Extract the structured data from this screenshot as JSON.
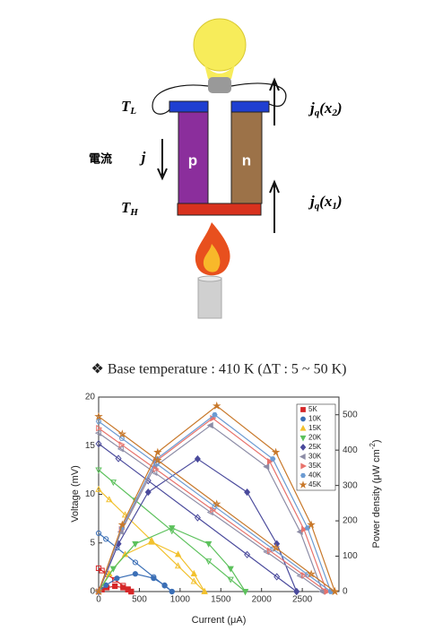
{
  "diagram": {
    "cold_side": [
      "T",
      "L"
    ],
    "hot_side": [
      "T",
      "H"
    ],
    "heat_flux_top": [
      "j",
      "q",
      "(x",
      "2",
      ")"
    ],
    "heat_flux_bottom": [
      "j",
      "q",
      "(x",
      "1",
      ")"
    ],
    "current_label": "電流",
    "current_symbol": "j",
    "p_leg": "p",
    "n_leg": "n",
    "caption": "❖ Base temperature : 410 K (ΔT : 5 ~ 50 K)"
  },
  "chart_data": {
    "type": "line",
    "xlabel": "Current (μA)",
    "ylabel": "Voltage (mV)",
    "y2label": [
      "Power density (μW cm",
      "-2",
      ")"
    ],
    "xlim": [
      0,
      2950
    ],
    "xticks": [
      0,
      500,
      1000,
      1500,
      2000,
      2500
    ],
    "ylim": [
      0,
      20
    ],
    "yticks": [
      0,
      5,
      10,
      15,
      20
    ],
    "y2lim": [
      0,
      550
    ],
    "y2ticks": [
      0,
      100,
      200,
      300,
      400,
      500
    ],
    "legend": "upper right",
    "series": [
      {
        "name": "5K",
        "color": "#d62728",
        "marker": "square",
        "x": [
          0,
          40,
          100,
          200,
          300,
          360,
          400
        ],
        "values": [
          2.4,
          2.16,
          1.8,
          1.2,
          0.6,
          0.24,
          0
        ],
        "power": [
          0,
          5.4,
          11.25,
          15,
          11.25,
          5.4,
          0
        ]
      },
      {
        "name": "10K",
        "color": "#3b6fb6",
        "marker": "circle",
        "x": [
          0,
          90,
          225,
          450,
          675,
          810,
          900
        ],
        "values": [
          6,
          5.4,
          4.5,
          3,
          1.5,
          0.6,
          0
        ],
        "power": [
          0,
          18,
          37.5,
          50,
          37.5,
          18,
          0
        ]
      },
      {
        "name": "15K",
        "color": "#f2c12e",
        "marker": "triangle-up",
        "x": [
          0,
          130,
          325,
          650,
          975,
          1170,
          1300
        ],
        "values": [
          10.5,
          9.45,
          7.88,
          5.25,
          2.63,
          1.05,
          0
        ],
        "power": [
          0,
          50.4,
          105,
          140,
          105,
          50.4,
          0
        ]
      },
      {
        "name": "20K",
        "color": "#5cc15c",
        "marker": "triangle-down",
        "x": [
          0,
          180,
          450,
          900,
          1350,
          1620,
          1800
        ],
        "values": [
          12.5,
          11.25,
          9.38,
          6.25,
          3.13,
          1.25,
          0
        ],
        "power": [
          0,
          64.8,
          135,
          180,
          135,
          64.8,
          0
        ]
      },
      {
        "name": "25K",
        "color": "#4a4a9c",
        "marker": "diamond",
        "x": [
          0,
          243,
          608,
          1215,
          1823,
          2187,
          2430
        ],
        "values": [
          15.2,
          13.68,
          11.4,
          7.6,
          3.8,
          1.52,
          0
        ],
        "power": [
          0,
          135,
          281,
          375,
          281,
          135,
          0
        ]
      },
      {
        "name": "30K",
        "color": "#8c8ca6",
        "marker": "triangle-left",
        "x": [
          0,
          275,
          688,
          1375,
          2063,
          2475,
          2750
        ],
        "values": [
          16.3,
          14.67,
          12.23,
          8.15,
          4.08,
          1.63,
          0
        ],
        "power": [
          0,
          169,
          353,
          470,
          353,
          169,
          0
        ]
      },
      {
        "name": "35K",
        "color": "#e8736c",
        "marker": "triangle-right",
        "x": [
          0,
          280,
          700,
          1400,
          2100,
          2520,
          2800
        ],
        "values": [
          16.8,
          15.12,
          12.6,
          8.4,
          4.2,
          1.68,
          0
        ],
        "power": [
          0,
          176,
          368,
          490,
          368,
          176,
          0
        ]
      },
      {
        "name": "40K",
        "color": "#6c9bd2",
        "marker": "hexagon",
        "x": [
          0,
          285,
          713,
          1425,
          2138,
          2565,
          2850
        ],
        "values": [
          17.5,
          15.75,
          13.13,
          8.75,
          4.38,
          1.75,
          0
        ],
        "power": [
          0,
          180,
          375,
          500,
          375,
          180,
          0
        ]
      },
      {
        "name": "45K",
        "color": "#c8782a",
        "marker": "star",
        "x": [
          0,
          290,
          725,
          1450,
          2175,
          2610,
          2900
        ],
        "values": [
          18,
          16.2,
          13.5,
          9,
          4.5,
          1.8,
          0
        ],
        "power": [
          0,
          189,
          394,
          525,
          394,
          189,
          0
        ]
      }
    ]
  }
}
